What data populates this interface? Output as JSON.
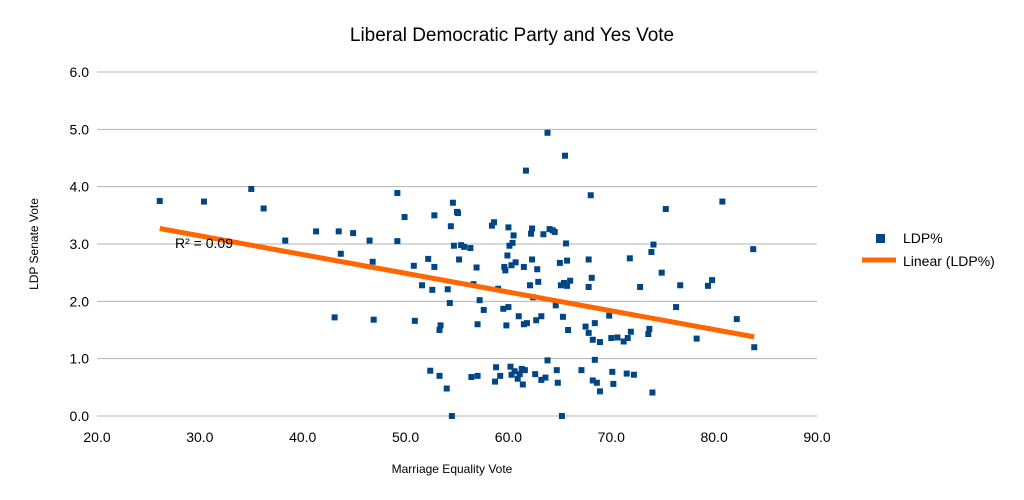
{
  "chart_data": {
    "type": "scatter",
    "title": "Liberal Democratic Party and Yes Vote",
    "xlabel": "Marriage Equality Vote",
    "ylabel": "LDP Senate Vote",
    "xlim": [
      20,
      90
    ],
    "ylim": [
      0,
      6
    ],
    "x_ticks": [
      "20.0",
      "30.0",
      "40.0",
      "50.0",
      "60.0",
      "70.0",
      "80.0",
      "90.0"
    ],
    "y_ticks": [
      "0.0",
      "1.0",
      "2.0",
      "3.0",
      "4.0",
      "5.0",
      "6.0"
    ],
    "grid": "horizontal",
    "legend_position": "right",
    "series": [
      {
        "name": "LDP%",
        "color": "#004586",
        "marker": "square",
        "points": [
          [
            26.1,
            3.75
          ],
          [
            30.4,
            3.74
          ],
          [
            35.0,
            3.96
          ],
          [
            36.2,
            3.62
          ],
          [
            38.3,
            3.06
          ],
          [
            41.3,
            3.22
          ],
          [
            43.1,
            1.72
          ],
          [
            43.5,
            3.22
          ],
          [
            43.7,
            2.83
          ],
          [
            44.9,
            3.19
          ],
          [
            46.5,
            3.06
          ],
          [
            46.8,
            2.69
          ],
          [
            46.9,
            1.68
          ],
          [
            49.2,
            3.89
          ],
          [
            49.2,
            3.05
          ],
          [
            49.9,
            3.47
          ],
          [
            50.8,
            2.62
          ],
          [
            50.9,
            1.66
          ],
          [
            51.6,
            2.28
          ],
          [
            52.2,
            2.74
          ],
          [
            52.4,
            0.79
          ],
          [
            52.6,
            2.2
          ],
          [
            52.8,
            3.5
          ],
          [
            52.8,
            2.6
          ],
          [
            53.3,
            0.7
          ],
          [
            53.3,
            1.5
          ],
          [
            53.4,
            1.58
          ],
          [
            54.0,
            0.48
          ],
          [
            54.1,
            2.21
          ],
          [
            54.3,
            1.97
          ],
          [
            54.4,
            3.31
          ],
          [
            54.5,
            0.0
          ],
          [
            54.6,
            3.72
          ],
          [
            54.7,
            2.97
          ],
          [
            55.0,
            3.56
          ],
          [
            55.1,
            3.54
          ],
          [
            55.2,
            2.73
          ],
          [
            55.4,
            2.98
          ],
          [
            55.7,
            2.95
          ],
          [
            56.3,
            2.93
          ],
          [
            56.4,
            0.68
          ],
          [
            56.6,
            2.3
          ],
          [
            56.9,
            2.59
          ],
          [
            57.0,
            0.7
          ],
          [
            57.0,
            1.6
          ],
          [
            57.2,
            2.02
          ],
          [
            57.6,
            1.85
          ],
          [
            58.4,
            3.32
          ],
          [
            58.6,
            3.38
          ],
          [
            58.7,
            0.6
          ],
          [
            58.8,
            0.85
          ],
          [
            59.0,
            2.22
          ],
          [
            59.2,
            0.7
          ],
          [
            59.5,
            1.87
          ],
          [
            59.6,
            2.6
          ],
          [
            59.7,
            2.54
          ],
          [
            59.8,
            1.58
          ],
          [
            59.9,
            2.8
          ],
          [
            60.0,
            3.29
          ],
          [
            60.0,
            1.9
          ],
          [
            60.1,
            2.97
          ],
          [
            60.2,
            0.86
          ],
          [
            60.3,
            0.72
          ],
          [
            60.3,
            2.63
          ],
          [
            60.4,
            3.02
          ],
          [
            60.5,
            3.15
          ],
          [
            60.6,
            0.78
          ],
          [
            60.7,
            2.68
          ],
          [
            60.9,
            0.65
          ],
          [
            61.0,
            1.74
          ],
          [
            61.1,
            0.73
          ],
          [
            61.3,
            0.82
          ],
          [
            61.4,
            0.55
          ],
          [
            61.5,
            2.6
          ],
          [
            61.5,
            1.6
          ],
          [
            61.6,
            0.8
          ],
          [
            61.7,
            4.28
          ],
          [
            61.8,
            1.62
          ],
          [
            62.1,
            2.28
          ],
          [
            62.2,
            3.18
          ],
          [
            62.3,
            2.73
          ],
          [
            62.3,
            3.27
          ],
          [
            62.4,
            2.07
          ],
          [
            62.6,
            0.73
          ],
          [
            62.7,
            1.67
          ],
          [
            62.8,
            2.56
          ],
          [
            62.9,
            2.34
          ],
          [
            63.2,
            1.74
          ],
          [
            63.2,
            0.63
          ],
          [
            63.4,
            3.17
          ],
          [
            63.6,
            0.67
          ],
          [
            63.8,
            0.97
          ],
          [
            63.8,
            4.94
          ],
          [
            64.0,
            3.26
          ],
          [
            64.3,
            3.24
          ],
          [
            64.5,
            3.21
          ],
          [
            64.6,
            1.93
          ],
          [
            64.7,
            0.8
          ],
          [
            64.8,
            0.58
          ],
          [
            65.0,
            2.67
          ],
          [
            65.1,
            2.28
          ],
          [
            65.2,
            0.0
          ],
          [
            65.3,
            1.73
          ],
          [
            65.4,
            2.32
          ],
          [
            65.5,
            4.54
          ],
          [
            65.6,
            3.01
          ],
          [
            65.7,
            2.27
          ],
          [
            65.7,
            2.71
          ],
          [
            65.8,
            1.5
          ],
          [
            66.0,
            2.36
          ],
          [
            67.1,
            0.8
          ],
          [
            67.5,
            1.56
          ],
          [
            67.8,
            2.73
          ],
          [
            67.8,
            2.25
          ],
          [
            67.8,
            1.45
          ],
          [
            68.0,
            3.85
          ],
          [
            68.1,
            2.41
          ],
          [
            68.2,
            0.62
          ],
          [
            68.2,
            1.33
          ],
          [
            68.4,
            0.98
          ],
          [
            68.4,
            1.62
          ],
          [
            68.6,
            0.58
          ],
          [
            68.9,
            1.29
          ],
          [
            68.9,
            0.43
          ],
          [
            69.8,
            1.75
          ],
          [
            70.0,
            1.36
          ],
          [
            70.1,
            0.77
          ],
          [
            70.2,
            0.56
          ],
          [
            70.6,
            1.37
          ],
          [
            71.2,
            1.3
          ],
          [
            71.5,
            0.74
          ],
          [
            71.6,
            1.36
          ],
          [
            71.8,
            2.75
          ],
          [
            71.9,
            1.47
          ],
          [
            72.2,
            0.72
          ],
          [
            72.8,
            2.25
          ],
          [
            73.6,
            1.43
          ],
          [
            73.7,
            1.52
          ],
          [
            73.9,
            2.86
          ],
          [
            74.0,
            0.41
          ],
          [
            74.1,
            2.99
          ],
          [
            74.9,
            2.5
          ],
          [
            75.3,
            3.61
          ],
          [
            76.3,
            1.9
          ],
          [
            76.7,
            2.28
          ],
          [
            78.3,
            1.35
          ],
          [
            79.4,
            2.27
          ],
          [
            79.8,
            2.37
          ],
          [
            80.8,
            3.74
          ],
          [
            82.2,
            1.69
          ],
          [
            83.8,
            2.91
          ],
          [
            83.9,
            1.2
          ]
        ]
      },
      {
        "name": "Linear (LDP%)",
        "color": "#FF6600",
        "type": "line",
        "x": [
          26.1,
          83.9
        ],
        "y": [
          3.27,
          1.38
        ]
      }
    ],
    "annotations": [
      {
        "text": "R² = 0.09"
      }
    ]
  }
}
